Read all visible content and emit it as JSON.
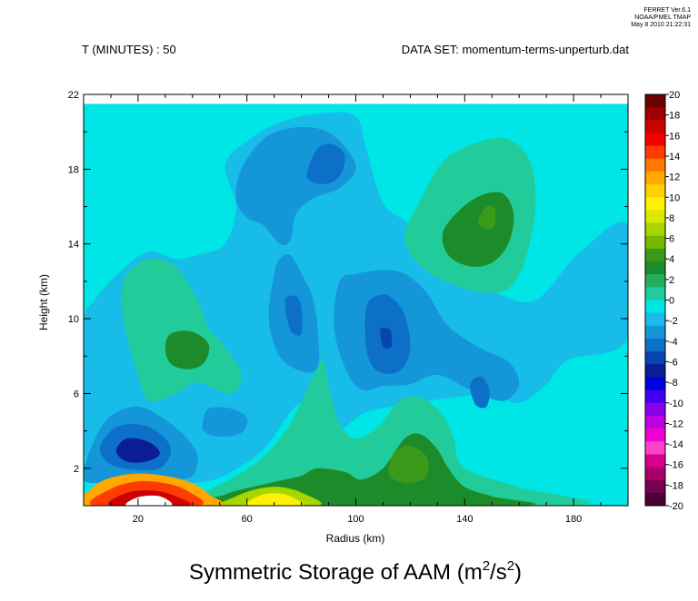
{
  "header": {
    "stamp_line1": "FERRET  Ver.6.1",
    "stamp_line2": "NOAA/PMEL TMAP",
    "stamp_line3": "May  8 2010 21:22:31",
    "time_label": "T (MINUTES) : 50",
    "dataset_label": "DATA SET: momentum-terms-unperturb.dat"
  },
  "chart_data": {
    "type": "heatmap",
    "title": "Symmetric Storage of AAM (m2/s2)",
    "title_main": "Symmetric Storage of AAM (m",
    "title_sup1": "2",
    "title_mid": "/s",
    "title_sup2": "2",
    "title_end": ")",
    "xlabel": "Radius (km)",
    "ylabel": "Height (km)",
    "xlim": [
      0,
      200
    ],
    "ylim": [
      0,
      22
    ],
    "data_top_y": 21.5,
    "x_ticks": [
      20,
      60,
      100,
      140,
      180
    ],
    "y_ticks": [
      2,
      6,
      10,
      14,
      18,
      22
    ],
    "x_minor_step": 10,
    "y_minor_step": 2,
    "colorbar_levels": [
      20,
      18,
      16,
      14,
      12,
      10,
      8,
      6,
      4,
      2,
      0,
      -2,
      -4,
      -6,
      -8,
      -10,
      -12,
      -14,
      -16,
      -18,
      -20
    ],
    "colorbar_colors": [
      "#6b0000",
      "#9d0000",
      "#cf0000",
      "#f40000",
      "#ff3c00",
      "#ff7800",
      "#ffa800",
      "#ffcf00",
      "#fff200",
      "#d8ea00",
      "#a8d400",
      "#78b800",
      "#3c9a1a",
      "#1c8c2a",
      "#22b060",
      "#22cc9a",
      "#00e6e6",
      "#18bce8",
      "#1496d8",
      "#0c70c8",
      "#0644b0",
      "#0a1c96",
      "#0000e0",
      "#4000f0",
      "#8a00e8",
      "#c000e0",
      "#f000d0",
      "#ff40c8",
      "#d8008c",
      "#a8006a",
      "#780050",
      "#4a0036"
    ],
    "background_level": 0,
    "regions": [
      {
        "level": -2,
        "color": "#18bce8",
        "points": [
          [
            0,
            3
          ],
          [
            8,
            2.5
          ],
          [
            20,
            1.5
          ],
          [
            36,
            1.2
          ],
          [
            50,
            1.5
          ],
          [
            66,
            3
          ],
          [
            80,
            5.5
          ],
          [
            92,
            4
          ],
          [
            104,
            5
          ],
          [
            122,
            5.5
          ],
          [
            136,
            5.8
          ],
          [
            150,
            6
          ],
          [
            160,
            5.5
          ],
          [
            170,
            6.5
          ],
          [
            178,
            7.8
          ],
          [
            200,
            9
          ],
          [
            200,
            15
          ],
          [
            182,
            13.5
          ],
          [
            166,
            11
          ],
          [
            150,
            11.5
          ],
          [
            132,
            13
          ],
          [
            120,
            15
          ],
          [
            110,
            16.2
          ],
          [
            104,
            19
          ],
          [
            100,
            20.8
          ],
          [
            88,
            21
          ],
          [
            72,
            20.5
          ],
          [
            60,
            19.5
          ],
          [
            52,
            18.2
          ],
          [
            56,
            16
          ],
          [
            52,
            14
          ],
          [
            44,
            13.5
          ],
          [
            34,
            13.2
          ],
          [
            24,
            13.6
          ],
          [
            14,
            12.6
          ],
          [
            4,
            11
          ],
          [
            0,
            9.5
          ]
        ]
      },
      {
        "level": 2,
        "color": "#22cc9a",
        "points": [
          [
            16,
            12.4
          ],
          [
            24,
            13.2
          ],
          [
            32,
            13
          ],
          [
            36,
            12.4
          ],
          [
            42,
            11
          ],
          [
            46,
            9.5
          ],
          [
            52,
            8.5
          ],
          [
            58,
            7
          ],
          [
            54,
            6
          ],
          [
            42,
            6.6
          ],
          [
            34,
            6
          ],
          [
            24,
            5.6
          ],
          [
            20,
            7
          ],
          [
            16,
            9
          ],
          [
            14,
            11
          ]
        ]
      },
      {
        "level": 4,
        "color": "#1c8c2a",
        "points": [
          [
            32,
            9.2
          ],
          [
            40,
            9.3
          ],
          [
            46,
            8.6
          ],
          [
            44,
            7.6
          ],
          [
            38,
            7.3
          ],
          [
            32,
            7.6
          ],
          [
            30,
            8.4
          ]
        ]
      },
      {
        "level": 2,
        "color": "#22cc9a",
        "points": [
          [
            118,
            14.4
          ],
          [
            124,
            16.4
          ],
          [
            132,
            18.4
          ],
          [
            144,
            19.4
          ],
          [
            156,
            19.6
          ],
          [
            164,
            18.4
          ],
          [
            166,
            16
          ],
          [
            162,
            13
          ],
          [
            156,
            11.6
          ],
          [
            148,
            11.4
          ],
          [
            136,
            11.8
          ],
          [
            124,
            12.8
          ]
        ]
      },
      {
        "level": 4,
        "color": "#1c8c2a",
        "points": [
          [
            132,
            14.6
          ],
          [
            138,
            15.8
          ],
          [
            146,
            16.6
          ],
          [
            154,
            16.7
          ],
          [
            158,
            15.6
          ],
          [
            156,
            14
          ],
          [
            150,
            13
          ],
          [
            142,
            12.8
          ],
          [
            134,
            13.4
          ]
        ]
      },
      {
        "level": 6,
        "color": "#3c9a1a",
        "points": [
          [
            145,
            15.2
          ],
          [
            148,
            16
          ],
          [
            151,
            15.9
          ],
          [
            151,
            15
          ],
          [
            148,
            14.8
          ]
        ]
      },
      {
        "level": -4,
        "color": "#1496d8",
        "points": [
          [
            56,
            16.4
          ],
          [
            58,
            18
          ],
          [
            66,
            19.6
          ],
          [
            76,
            20.2
          ],
          [
            88,
            20.1
          ],
          [
            96,
            19.2
          ],
          [
            100,
            18
          ],
          [
            94,
            17
          ],
          [
            84,
            16.4
          ],
          [
            78,
            15.6
          ],
          [
            76,
            14.2
          ],
          [
            72,
            14
          ],
          [
            66,
            15
          ],
          [
            60,
            15.4
          ]
        ]
      },
      {
        "level": -6,
        "color": "#0c70c8",
        "points": [
          [
            82,
            17.6
          ],
          [
            86,
            19.1
          ],
          [
            92,
            19.3
          ],
          [
            96,
            18.7
          ],
          [
            94,
            17.6
          ],
          [
            88,
            17.2
          ]
        ]
      },
      {
        "level": -4,
        "color": "#1496d8",
        "points": [
          [
            70,
            12.4
          ],
          [
            68,
            10
          ],
          [
            72,
            8
          ],
          [
            80,
            7.2
          ],
          [
            86,
            7.4
          ],
          [
            86,
            9.4
          ],
          [
            84,
            11.2
          ],
          [
            80,
            12.4
          ],
          [
            76,
            13.4
          ],
          [
            72,
            13.2
          ]
        ]
      },
      {
        "level": -6,
        "color": "#0c70c8",
        "points": [
          [
            74,
            11
          ],
          [
            76,
            9.4
          ],
          [
            80,
            9.2
          ],
          [
            80,
            10.6
          ],
          [
            78,
            11.2
          ]
        ]
      },
      {
        "level": -4,
        "color": "#1496d8",
        "points": [
          [
            94,
            12
          ],
          [
            92,
            9.6
          ],
          [
            96,
            7.4
          ],
          [
            102,
            6.2
          ],
          [
            110,
            6.4
          ],
          [
            120,
            6.5
          ],
          [
            130,
            7
          ],
          [
            142,
            6.2
          ],
          [
            154,
            5.6
          ],
          [
            160,
            6.5
          ],
          [
            156,
            7.7
          ],
          [
            146,
            8.4
          ],
          [
            134,
            9.6
          ],
          [
            126,
            11.4
          ],
          [
            118,
            12.4
          ],
          [
            110,
            12.6
          ],
          [
            100,
            12.4
          ]
        ]
      },
      {
        "level": -6,
        "color": "#0c70c8",
        "points": [
          [
            104,
            10.7
          ],
          [
            104,
            8.3
          ],
          [
            108,
            7.2
          ],
          [
            116,
            7.2
          ],
          [
            120,
            8.4
          ],
          [
            118,
            10.2
          ],
          [
            114,
            11
          ],
          [
            110,
            11.3
          ]
        ]
      },
      {
        "level": -8,
        "color": "#0644b0",
        "points": [
          [
            109,
            9.4
          ],
          [
            110,
            8.5
          ],
          [
            113,
            8.5
          ],
          [
            113,
            9.3
          ],
          [
            111,
            9.5
          ]
        ]
      },
      {
        "level": -6,
        "color": "#0c70c8",
        "points": [
          [
            142,
            6.5
          ],
          [
            144,
            5.4
          ],
          [
            148,
            5.3
          ],
          [
            149,
            6.2
          ],
          [
            146,
            6.9
          ]
        ]
      },
      {
        "level": -4,
        "color": "#1496d8",
        "points": [
          [
            44,
            4.6
          ],
          [
            46,
            5.2
          ],
          [
            54,
            5.2
          ],
          [
            60,
            4.7
          ],
          [
            58,
            3.9
          ],
          [
            50,
            3.7
          ],
          [
            44,
            4
          ]
        ]
      },
      {
        "level": -4,
        "color": "#1496d8",
        "points": [
          [
            0,
            1.4
          ],
          [
            4,
            3.5
          ],
          [
            10,
            4.8
          ],
          [
            20,
            5.3
          ],
          [
            30,
            4.6
          ],
          [
            38,
            3.6
          ],
          [
            42,
            2.6
          ],
          [
            40,
            1.6
          ],
          [
            34,
            1.4
          ],
          [
            24,
            1.3
          ],
          [
            12,
            1.3
          ]
        ]
      },
      {
        "level": -6,
        "color": "#0c70c8",
        "points": [
          [
            6,
            3.1
          ],
          [
            12,
            4.2
          ],
          [
            22,
            4.3
          ],
          [
            30,
            3.6
          ],
          [
            32,
            2.8
          ],
          [
            28,
            2
          ],
          [
            20,
            1.9
          ],
          [
            10,
            2.2
          ]
        ]
      },
      {
        "level": -10,
        "color": "#0a1c96",
        "points": [
          [
            12,
            3
          ],
          [
            16,
            3.6
          ],
          [
            24,
            3.4
          ],
          [
            28,
            2.8
          ],
          [
            24,
            2.4
          ],
          [
            18,
            2.3
          ],
          [
            14,
            2.5
          ]
        ]
      },
      {
        "level": 2,
        "color": "#22cc9a",
        "points": [
          [
            40,
            0
          ],
          [
            46,
            0.8
          ],
          [
            56,
            1.6
          ],
          [
            66,
            2.6
          ],
          [
            76,
            4.4
          ],
          [
            84,
            6.8
          ],
          [
            88,
            7.8
          ],
          [
            90,
            6.4
          ],
          [
            94,
            4.4
          ],
          [
            100,
            3.6
          ],
          [
            108,
            4.2
          ],
          [
            116,
            5.6
          ],
          [
            124,
            5.8
          ],
          [
            132,
            4.8
          ],
          [
            136,
            3.6
          ],
          [
            140,
            2
          ],
          [
            160,
            1
          ],
          [
            180,
            0
          ]
        ]
      },
      {
        "level": 4,
        "color": "#1c8c2a",
        "points": [
          [
            48,
            0
          ],
          [
            52,
            0.6
          ],
          [
            62,
            1
          ],
          [
            68,
            1.2
          ],
          [
            74,
            1.4
          ],
          [
            80,
            1.6
          ],
          [
            86,
            2
          ],
          [
            96,
            1.8
          ],
          [
            102,
            1.4
          ],
          [
            110,
            2
          ],
          [
            118,
            3.6
          ],
          [
            124,
            3.8
          ],
          [
            130,
            3
          ],
          [
            134,
            2
          ],
          [
            140,
            1
          ],
          [
            150,
            0.5
          ],
          [
            160,
            0
          ]
        ]
      },
      {
        "level": 6,
        "color": "#3c9a1a",
        "points": [
          [
            112,
            1.8
          ],
          [
            114,
            2.8
          ],
          [
            120,
            3.2
          ],
          [
            126,
            2.6
          ],
          [
            126,
            1.6
          ],
          [
            120,
            1.2
          ],
          [
            114,
            1.4
          ]
        ]
      },
      {
        "level": 8,
        "color": "#a8d400",
        "points": [
          [
            52,
            0
          ],
          [
            56,
            0.5
          ],
          [
            64,
            0.9
          ],
          [
            72,
            1
          ],
          [
            80,
            0.7
          ],
          [
            86,
            0
          ]
        ]
      },
      {
        "level": 10,
        "color": "#fff200",
        "points": [
          [
            60,
            0
          ],
          [
            66,
            0.6
          ],
          [
            74,
            0.6
          ],
          [
            80,
            0
          ]
        ]
      },
      {
        "level": 12,
        "color": "#ffa800",
        "points": [
          [
            0,
            0
          ],
          [
            2,
            0.8
          ],
          [
            8,
            1.4
          ],
          [
            18,
            1.7
          ],
          [
            30,
            1.6
          ],
          [
            40,
            1.2
          ],
          [
            46,
            0.6
          ],
          [
            48,
            0
          ]
        ]
      },
      {
        "level": 16,
        "color": "#ff3c00",
        "points": [
          [
            4,
            0
          ],
          [
            10,
            0.9
          ],
          [
            20,
            1.3
          ],
          [
            30,
            1.2
          ],
          [
            38,
            0.8
          ],
          [
            42,
            0
          ]
        ]
      },
      {
        "level": 18,
        "color": "#cf0000",
        "points": [
          [
            10,
            0
          ],
          [
            16,
            0.7
          ],
          [
            26,
            0.8
          ],
          [
            34,
            0.5
          ],
          [
            38,
            0
          ]
        ]
      },
      {
        "level": 20,
        "color": "#ffffff",
        "points": [
          [
            16,
            0
          ],
          [
            20,
            0.45
          ],
          [
            28,
            0.5
          ],
          [
            32,
            0
          ]
        ]
      }
    ]
  }
}
